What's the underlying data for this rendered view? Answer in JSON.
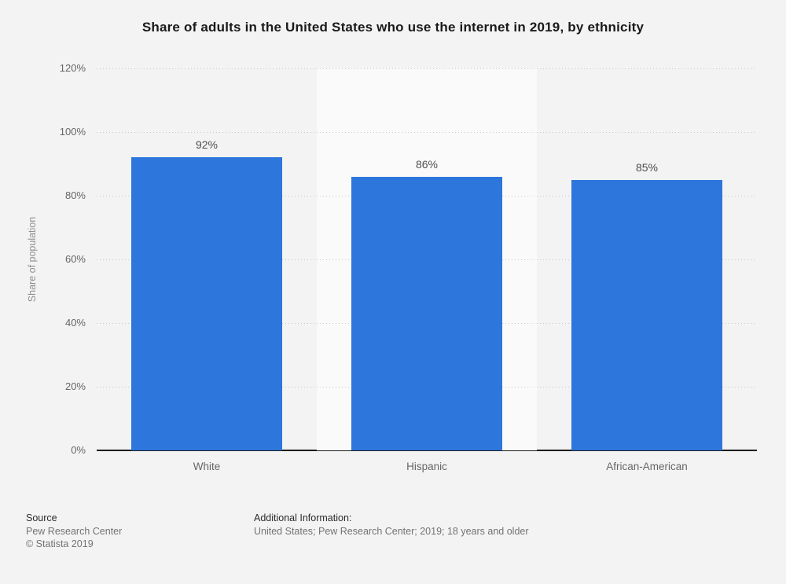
{
  "chart": {
    "title": "Share of adults in the United States who use the internet in 2019, by ethnicity",
    "ylabel": "Share of population"
  },
  "chart_data": {
    "type": "bar",
    "categories": [
      "White",
      "Hispanic",
      "African-American"
    ],
    "values": [
      92,
      86,
      85
    ],
    "value_labels": [
      "92%",
      "86%",
      "85%"
    ],
    "title": "Share of adults in the United States who use the internet in 2019, by ethnicity",
    "xlabel": "",
    "ylabel": "Share of population",
    "ylim": [
      0,
      120
    ],
    "ytick_step": 20,
    "ytick_labels": [
      "0%",
      "20%",
      "40%",
      "60%",
      "80%",
      "100%",
      "120%"
    ],
    "grid": true,
    "legend": false,
    "bar_color": "#2d76dc",
    "alt_band_color": "#fafafa"
  },
  "footer": {
    "source_label": "Source",
    "source_name": "Pew Research Center",
    "copyright": "© Statista 2019",
    "additional_info_label": "Additional Information:",
    "additional_info_text": "United States; Pew Research Center; 2019; 18 years and older"
  }
}
